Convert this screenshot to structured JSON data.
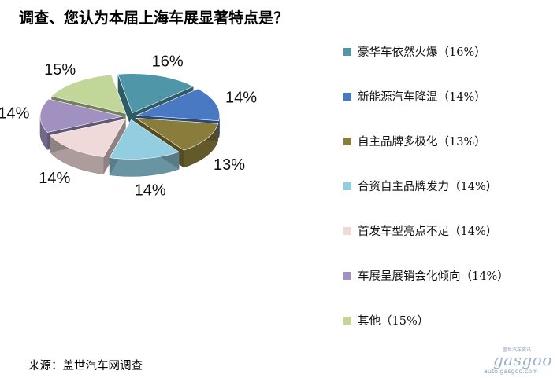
{
  "title": "调查、您认为本届上海车展显著特点是？",
  "source": "来源：盖世汽车网调查",
  "watermark": {
    "cn": "盖世汽车资讯",
    "logo": "gasgoo",
    "url": "auto.gasgoo.com"
  },
  "chart_data": {
    "type": "pie",
    "style": "3d-exploded",
    "legend_position": "right",
    "slices": [
      {
        "label": "豪华车依然火爆（16%）",
        "value": 16,
        "display": "16%",
        "color": "#4f97a8"
      },
      {
        "label": "新能源汽车降温（14%）",
        "value": 14,
        "display": "14%",
        "color": "#4a79c4"
      },
      {
        "label": "自主品牌多极化（13%）",
        "value": 13,
        "display": "13%",
        "color": "#8a7d3c"
      },
      {
        "label": "合资自主品牌发力（14%）",
        "value": 14,
        "display": "14%",
        "color": "#92cde0"
      },
      {
        "label": "首发车型亮点不足（14%）",
        "value": 14,
        "display": "14%",
        "color": "#efd9d9"
      },
      {
        "label": "车展呈展销会化倾向（14%）",
        "value": 14,
        "display": "14%",
        "color": "#a091c0"
      },
      {
        "label": "其他（15%）",
        "value": 15,
        "display": "15%",
        "color": "#c2d69a"
      }
    ]
  }
}
